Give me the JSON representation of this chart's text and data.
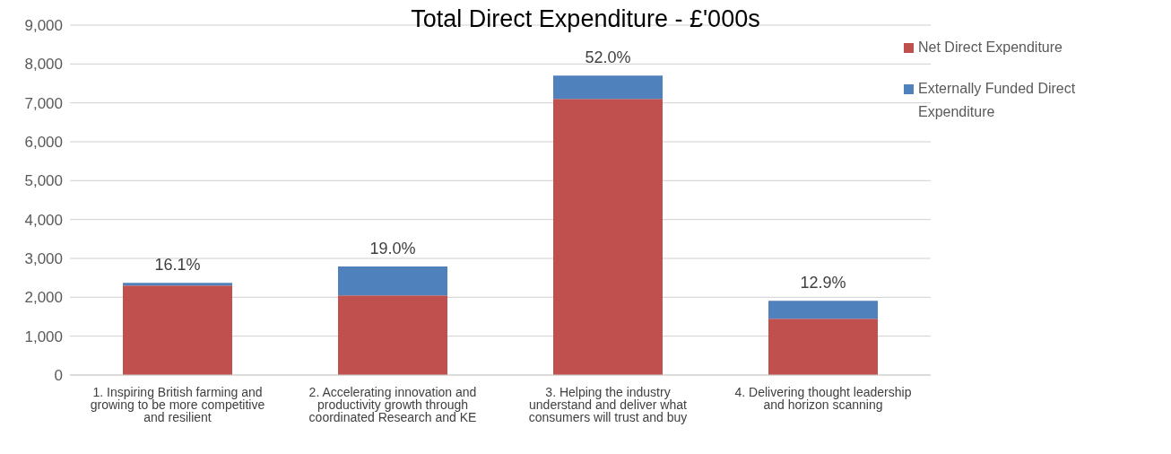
{
  "chart_data": {
    "type": "bar",
    "title": "Total Direct Expenditure - £'000s",
    "categories": [
      "1. Inspiring British farming and growing to be more competitive and resilient",
      "2. Accelerating innovation and productivity growth through coordinated Research and KE",
      "3. Helping the industry understand and deliver what consumers will trust and buy",
      "4. Delivering thought leadership and horizon scanning"
    ],
    "series": [
      {
        "name": "Net Direct Expenditure",
        "color": "#c0504d",
        "values": [
          2300,
          2050,
          7100,
          1450
        ]
      },
      {
        "name": "Externally Funded Direct Expenditure",
        "color": "#4f81bd",
        "values": [
          70,
          740,
          600,
          460
        ]
      }
    ],
    "stacked": true,
    "annotations": [
      {
        "text": "16.1%",
        "x": "1. Inspiring British farming and growing to be more competitive and resilient",
        "y": 2370
      },
      {
        "text": "19.0%",
        "x": "2. Accelerating innovation and productivity growth through coordinated Research and KE",
        "y": 2790
      },
      {
        "text": "52.0%",
        "x": "3. Helping the industry understand and deliver what consumers will trust and buy",
        "y": 7700
      },
      {
        "text": "12.9%",
        "x": "4. Delivering thought leadership and horizon scanning",
        "y": 1910
      }
    ],
    "ylim": [
      0,
      9000
    ],
    "yticks": [
      0,
      {
        "value": 1000,
        "label": "1,000"
      },
      {
        "value": 2000,
        "label": "2,000"
      },
      {
        "value": 3000,
        "label": "3,000"
      },
      {
        "value": 4000,
        "label": "4,000"
      },
      {
        "value": 5000,
        "label": "5,000"
      },
      {
        "value": 6000,
        "label": "6,000"
      },
      {
        "value": 7000,
        "label": "7,000"
      },
      {
        "value": 8000,
        "label": "8,000"
      },
      {
        "value": 9000,
        "label": "9,000"
      }
    ],
    "grid": "y",
    "legend": "top right"
  }
}
